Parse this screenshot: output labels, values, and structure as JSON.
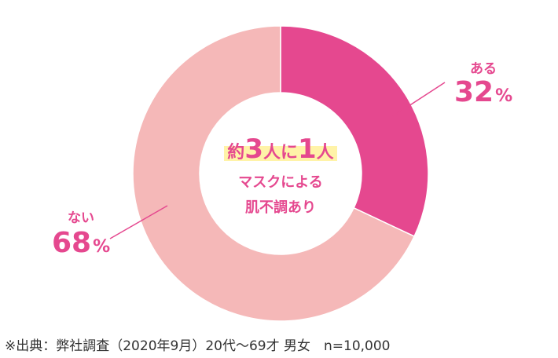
{
  "chart_data": {
    "type": "pie",
    "donut": true,
    "categories": [
      "ある",
      "ない"
    ],
    "values": [
      32,
      68
    ],
    "unit": "%",
    "colors": [
      "#e5488f",
      "#f5b8b8"
    ],
    "center_text": {
      "line1_prefix": "約",
      "line1_n1": "3",
      "line1_mid": "人に",
      "line1_n2": "1",
      "line1_suffix": "人",
      "line2": "マスクによる",
      "line3": "肌不調あり"
    },
    "labels": {
      "aru": {
        "name": "ある",
        "value": "32",
        "unit": "%"
      },
      "nai": {
        "name": "ない",
        "value": "68",
        "unit": "%"
      }
    }
  },
  "source_note": "※出典：弊社調査（2020年9月）20代〜69才 男女　n=10,000"
}
